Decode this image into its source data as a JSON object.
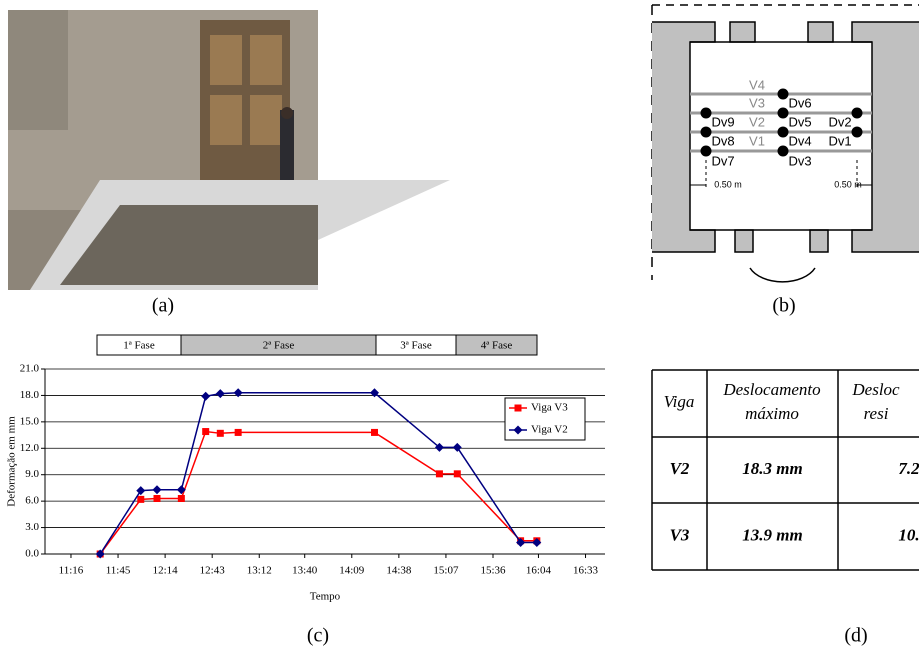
{
  "captions": [
    "(a)",
    "(b)",
    "(c)",
    "(d)"
  ],
  "diagram": {
    "beams": [
      "V4",
      "V3",
      "V2",
      "V1"
    ],
    "points": [
      "Dv6",
      "Dv9",
      "Dv5",
      "Dv2",
      "Dv8",
      "Dv4",
      "Dv1",
      "Dv7",
      "Dv3"
    ],
    "dimensions": [
      "0.50 m",
      "0.50 m"
    ]
  },
  "chart_data": {
    "type": "line",
    "y_label": "Deformação em mm",
    "x_label": "Tempo",
    "phases": [
      {
        "label": "1ª Fase",
        "color": "#ffffff"
      },
      {
        "label": "2ª Fase",
        "color": "#c0c0c0"
      },
      {
        "label": "3ª Fase",
        "color": "#ffffff"
      },
      {
        "label": "4ª Fase",
        "color": "#c0c0c0"
      }
    ],
    "x": [
      "11:34",
      "11:59",
      "12:09",
      "12:24",
      "12:39",
      "12:48",
      "12:59",
      "14:23",
      "15:03",
      "15:14",
      "15:53",
      "16:03"
    ],
    "series": [
      {
        "name": "Viga V3",
        "color": "#ff0000",
        "marker": "square",
        "values": [
          0,
          6.2,
          6.3,
          6.3,
          13.9,
          13.7,
          13.8,
          13.8,
          9.1,
          9.1,
          1.5,
          1.5
        ]
      },
      {
        "name": "Viga V2",
        "color": "#000080",
        "marker": "diamond",
        "values": [
          0,
          7.2,
          7.3,
          7.3,
          17.9,
          18.2,
          18.3,
          18.3,
          12.1,
          12.1,
          1.3,
          1.3
        ]
      }
    ],
    "xlim": [
      "11:00",
      "16:45"
    ],
    "xticks": [
      "11:16",
      "11:45",
      "12:14",
      "12:43",
      "13:12",
      "13:40",
      "14:09",
      "14:38",
      "15:07",
      "15:36",
      "16:04",
      "16:33"
    ],
    "ylim": [
      0,
      21
    ],
    "yticks": [
      {
        "value": 0,
        "label": "0.0"
      },
      {
        "value": 3,
        "label": "3.0"
      },
      {
        "value": 6,
        "label": "6.0"
      },
      {
        "value": 9,
        "label": "9.0"
      },
      {
        "value": 12,
        "label": "12.0"
      },
      {
        "value": 15,
        "label": "15.0"
      },
      {
        "value": 18,
        "label": "18.0"
      },
      {
        "value": 21,
        "label": "21.0"
      }
    ],
    "grid": true,
    "legend": "right"
  },
  "table": {
    "header": [
      "Viga",
      "Deslocamento",
      "máximo",
      "Desloc",
      "resi"
    ],
    "rows": [
      [
        "V2",
        "18.3 mm",
        "7.2"
      ],
      [
        "V3",
        "13.9 mm",
        "10."
      ]
    ]
  }
}
